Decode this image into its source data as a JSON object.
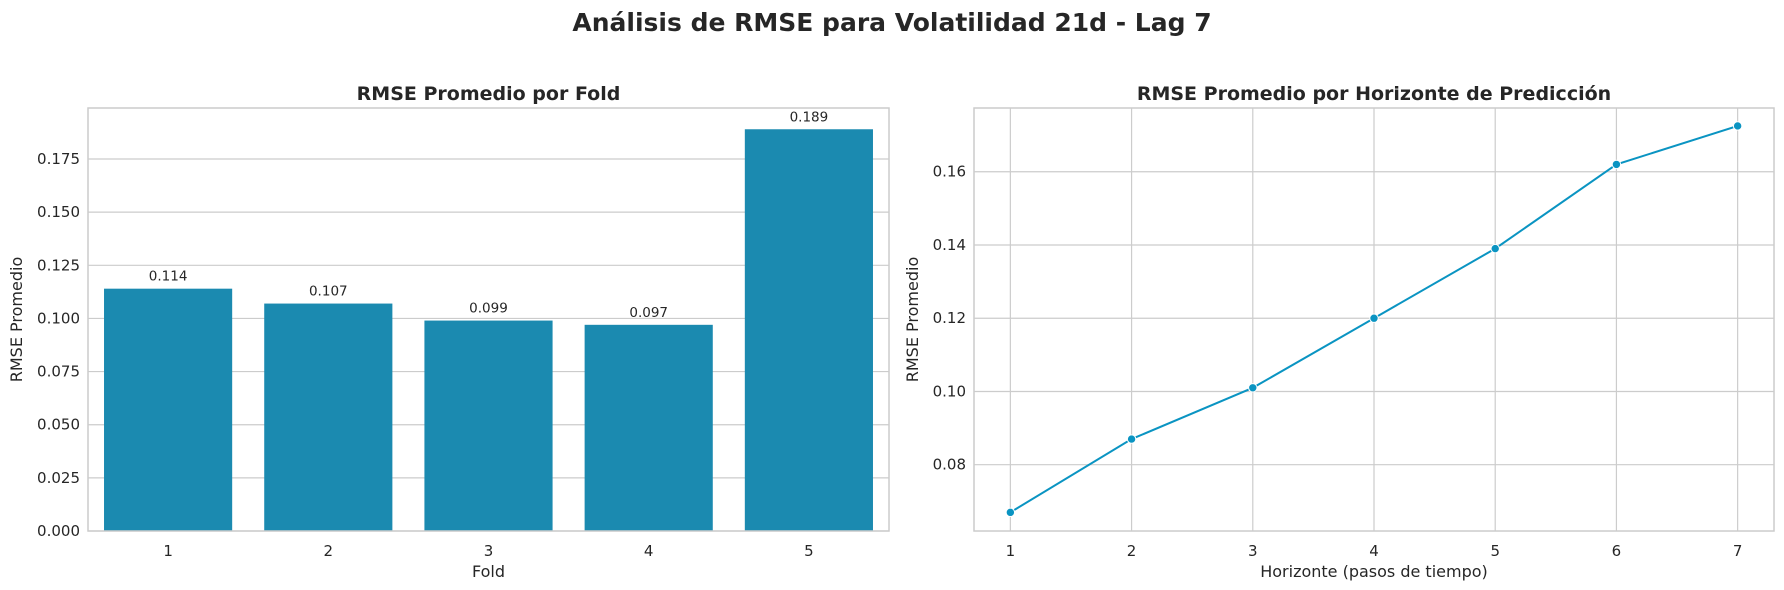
{
  "figure": {
    "title": "Análisis de RMSE para Volatilidad 21d - Lag 7"
  },
  "chart_data": [
    {
      "type": "bar",
      "title": "RMSE Promedio por Fold",
      "xlabel": "Fold",
      "ylabel": "RMSE Promedio",
      "categories": [
        "1",
        "2",
        "3",
        "4",
        "5"
      ],
      "values": [
        0.114,
        0.107,
        0.099,
        0.097,
        0.189
      ],
      "data_labels": [
        "0.114",
        "0.107",
        "0.099",
        "0.097",
        "0.189"
      ],
      "ylim": [
        0,
        0.199
      ],
      "yticks": [
        0.0,
        0.025,
        0.05,
        0.075,
        0.1,
        0.125,
        0.15,
        0.175
      ],
      "ytick_labels": [
        "0.000",
        "0.025",
        "0.050",
        "0.075",
        "0.100",
        "0.125",
        "0.150",
        "0.175"
      ],
      "color": "#1b8ab0",
      "grid": true
    },
    {
      "type": "line",
      "title": "RMSE Promedio por Horizonte de Predicción",
      "xlabel": "Horizonte (pasos de tiempo)",
      "ylabel": "RMSE Promedio",
      "x": [
        1,
        2,
        3,
        4,
        5,
        6,
        7
      ],
      "xtick_labels": [
        "1",
        "2",
        "3",
        "4",
        "5",
        "6",
        "7"
      ],
      "values": [
        0.067,
        0.087,
        0.101,
        0.12,
        0.139,
        0.162,
        0.1725
      ],
      "xlim": [
        0.7,
        7.3
      ],
      "ylim": [
        0.0619,
        0.1774
      ],
      "yticks": [
        0.08,
        0.1,
        0.12,
        0.14,
        0.16
      ],
      "ytick_labels": [
        "0.08",
        "0.10",
        "0.12",
        "0.14",
        "0.16"
      ],
      "color": "#0a94c2",
      "marker": "circle",
      "grid": true
    }
  ]
}
